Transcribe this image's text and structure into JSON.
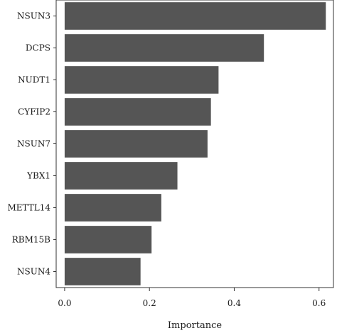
{
  "chart_data": {
    "type": "bar",
    "orientation": "horizontal",
    "title": "",
    "xlabel": "Importance",
    "ylabel": "",
    "categories": [
      "NSUN3",
      "DCPS",
      "NUDT1",
      "CYFIP2",
      "NSUN7",
      "YBX1",
      "METTL14",
      "RBM15B",
      "NSUN4"
    ],
    "values": [
      0.616,
      0.47,
      0.363,
      0.345,
      0.337,
      0.266,
      0.228,
      0.205,
      0.179
    ],
    "xlim": [
      -0.02,
      0.634
    ],
    "xticks": [
      0.0,
      0.2,
      0.4,
      0.6
    ],
    "xtick_labels": [
      "0.0",
      "0.2",
      "0.4",
      "0.6"
    ],
    "grid": false,
    "legend": "none",
    "bar_color": "#555555"
  }
}
